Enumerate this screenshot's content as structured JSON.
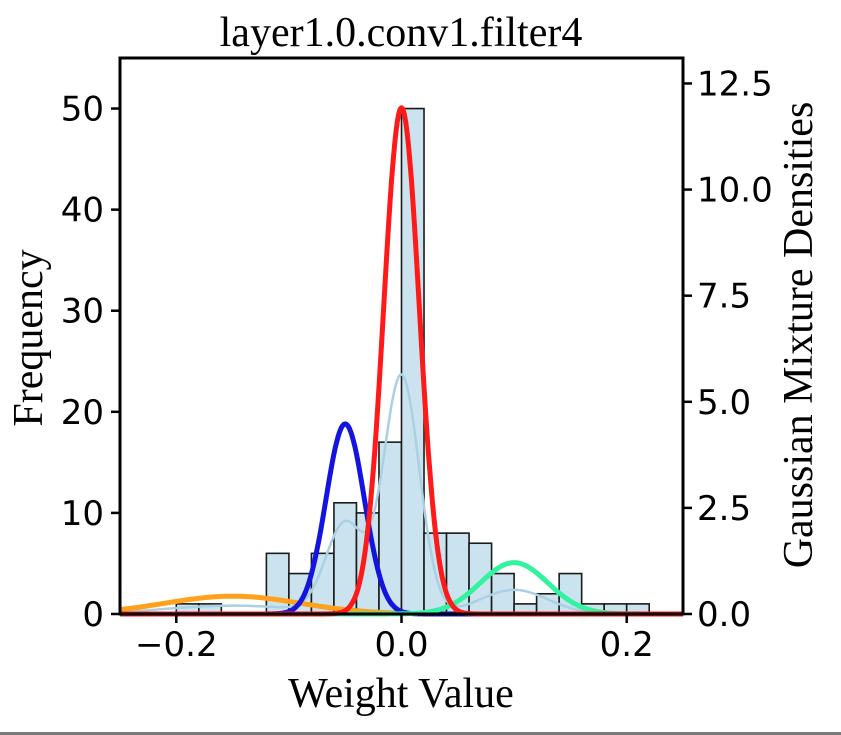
{
  "chart_data": {
    "type": "bar",
    "title": "layer1.0.conv1.filter4",
    "xlabel": "Weight Value",
    "ylabel": "Frequency",
    "y2label": "Gaussian Mixture Densities",
    "xlim": [
      -0.25,
      0.25
    ],
    "ylim": [
      0,
      55
    ],
    "y2lim": [
      0,
      13.1
    ],
    "xticks": [
      "−0.2",
      "0.0",
      "0.2"
    ],
    "xtick_values": [
      -0.2,
      0.0,
      0.2
    ],
    "yticks": [
      "0",
      "10",
      "20",
      "30",
      "40",
      "50"
    ],
    "ytick_values": [
      0,
      10,
      20,
      30,
      40,
      50
    ],
    "y2ticks": [
      "0.0",
      "2.5",
      "5.0",
      "7.5",
      "10.0",
      "12.5"
    ],
    "y2tick_values": [
      0,
      2.5,
      5,
      7.5,
      10,
      12.5
    ],
    "grid": false,
    "histogram": {
      "bin_edges": [
        -0.24,
        -0.22,
        -0.2,
        -0.18,
        -0.16,
        -0.14,
        -0.12,
        -0.1,
        -0.08,
        -0.06,
        -0.04,
        -0.02,
        0.0,
        0.02,
        0.04,
        0.06,
        0.08,
        0.1,
        0.12,
        0.14,
        0.16,
        0.18,
        0.2,
        0.22
      ],
      "counts": [
        0,
        0,
        1,
        1,
        0,
        0,
        6,
        4,
        6,
        11,
        10,
        17,
        50,
        8,
        8,
        7,
        4,
        1,
        2,
        4,
        1,
        1,
        1
      ],
      "fill": "#cbe3ef",
      "edge": "#1a1a1a"
    },
    "kde": {
      "color": "#a9d1e3",
      "mixture_of": [
        "red",
        "blue",
        "green",
        "orange"
      ]
    },
    "series": [
      {
        "color": "#ff1a1a",
        "mean": 0.0,
        "std": 0.0158,
        "peak_density": 11.93
      },
      {
        "color": "#1414e0",
        "mean": -0.05,
        "std": 0.017,
        "peak_density": 4.48
      },
      {
        "color": "#33f2a0",
        "mean": 0.1,
        "std": 0.03,
        "peak_density": 1.21
      },
      {
        "color": "#ffa11a",
        "mean": -0.15,
        "std": 0.06,
        "peak_density": 0.42
      }
    ]
  }
}
